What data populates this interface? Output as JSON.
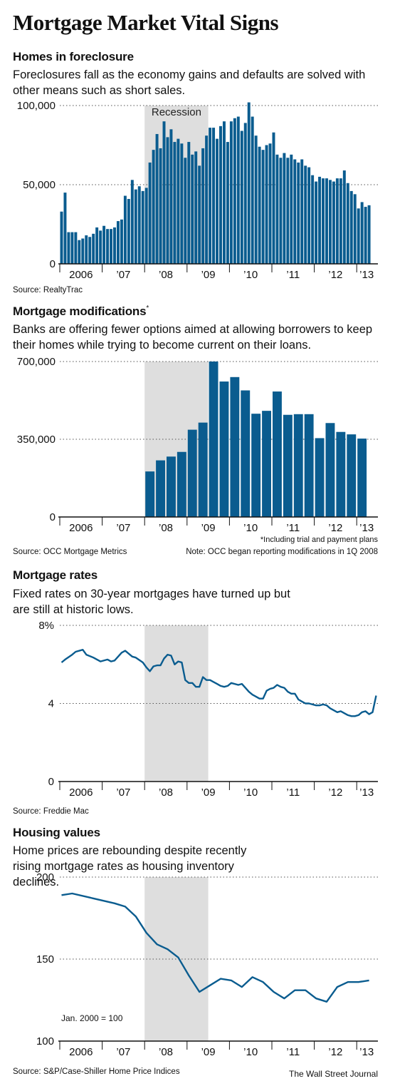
{
  "title": "Mortgage Market Vital Signs",
  "credit": "The Wall Street Journal",
  "colors": {
    "bar": "#0a5c8f",
    "line": "#0a5c8f",
    "recession": "#dedede",
    "axis": "#111111",
    "grid": "#555555"
  },
  "x_tick_labels": [
    "2006",
    "’07",
    "’08",
    "’09",
    "’10",
    "’11",
    "’12",
    "’13"
  ],
  "chart_data": [
    {
      "id": "foreclosures",
      "type": "bar",
      "title": "Homes in foreclosure",
      "subtitle": "Foreclosures fall as the economy gains and defaults are solved with other means such as short sales.",
      "source": "Source: RealtyTrac",
      "recession_label": "Recession",
      "recession": [
        "2008-01",
        "2009-06"
      ],
      "x_start": "2006-01",
      "x_end": "2013-06",
      "ylim": [
        0,
        100000
      ],
      "yticks": [
        0,
        50000,
        100000
      ],
      "ytick_labels": [
        "0",
        "50,000",
        "100,000"
      ],
      "values": [
        33000,
        45000,
        20000,
        20000,
        20000,
        15000,
        16000,
        18000,
        17000,
        19000,
        23000,
        21000,
        24000,
        22000,
        22000,
        23000,
        27000,
        28000,
        43000,
        41000,
        53000,
        47000,
        49000,
        46000,
        48000,
        64000,
        72000,
        82000,
        73000,
        90000,
        80000,
        85000,
        77000,
        79000,
        76000,
        67000,
        77000,
        69000,
        71000,
        62000,
        73000,
        81000,
        86000,
        86000,
        79000,
        87000,
        90000,
        77000,
        90000,
        92000,
        93000,
        84000,
        89000,
        102000,
        93000,
        81000,
        74000,
        72000,
        75000,
        76000,
        83000,
        69000,
        67000,
        70000,
        67000,
        69000,
        66000,
        64000,
        66000,
        62000,
        61000,
        56000,
        52000,
        55000,
        54000,
        54000,
        53000,
        52000,
        54000,
        54000,
        59000,
        51000,
        46000,
        44000,
        35000,
        39000,
        36000,
        37000
      ]
    },
    {
      "id": "modifications",
      "type": "bar",
      "title": "Mortgage modifications",
      "title_mark": "*",
      "subtitle": "Banks are offering fewer options aimed at allowing borrowers to keep their homes while trying to become current on their loans.",
      "source": "Source: OCC Mortgage Metrics",
      "footnote": "*Including trial and payment plans",
      "note": "Note: OCC began reporting modifications in 1Q 2008",
      "recession": [
        "2008-01",
        "2009-06"
      ],
      "x_start": "2006-01",
      "x_end": "2013-06",
      "ylim": [
        0,
        700000
      ],
      "yticks": [
        0,
        350000,
        700000
      ],
      "ytick_labels": [
        "0",
        "350,000",
        "700,000"
      ],
      "categories": [
        "1Q 2008",
        "2Q 2008",
        "3Q 2008",
        "4Q 2008",
        "1Q 2009",
        "2Q 2009",
        "3Q 2009",
        "4Q 2009",
        "1Q 2010",
        "2Q 2010",
        "3Q 2010",
        "4Q 2010",
        "1Q 2011",
        "2Q 2011",
        "3Q 2011",
        "4Q 2011",
        "1Q 2012",
        "2Q 2012",
        "3Q 2012",
        "4Q 2012",
        "1Q 2013"
      ],
      "values": [
        205000,
        255000,
        272000,
        293000,
        393000,
        425000,
        700000,
        610000,
        630000,
        570000,
        465000,
        478000,
        565000,
        460000,
        463000,
        463000,
        355000,
        423000,
        383000,
        372000,
        353000
      ]
    },
    {
      "id": "rates",
      "type": "line",
      "title": "Mortgage rates",
      "subtitle": "Fixed rates on 30-year mortgages have turned up but are still at historic lows.",
      "source": "Source: Freddie Mac",
      "recession": [
        "2008-01",
        "2009-06"
      ],
      "x_start": "2006-01",
      "x_end": "2013-06",
      "ylim": [
        0,
        8
      ],
      "yticks": [
        0,
        4,
        8
      ],
      "ytick_labels": [
        "0",
        "4",
        "8%"
      ],
      "x": [
        "2006-01",
        "2006-02",
        "2006-04",
        "2006-05",
        "2006-07",
        "2006-08",
        "2006-10",
        "2006-12",
        "2007-02",
        "2007-03",
        "2007-04",
        "2007-06",
        "2007-07",
        "2007-09",
        "2007-10",
        "2007-12",
        "2008-01",
        "2008-02",
        "2008-03",
        "2008-04",
        "2008-05",
        "2008-06",
        "2008-07",
        "2008-08",
        "2008-09",
        "2008-10",
        "2008-11",
        "2008-12",
        "2009-01",
        "2009-02",
        "2009-03",
        "2009-04",
        "2009-05",
        "2009-06",
        "2009-07",
        "2009-08",
        "2009-09",
        "2009-10",
        "2009-11",
        "2009-12",
        "2010-01",
        "2010-03",
        "2010-04",
        "2010-05",
        "2010-06",
        "2010-07",
        "2010-08",
        "2010-09",
        "2010-10",
        "2010-11",
        "2010-12",
        "2011-01",
        "2011-02",
        "2011-03",
        "2011-04",
        "2011-05",
        "2011-06",
        "2011-07",
        "2011-08",
        "2011-09",
        "2011-10",
        "2011-11",
        "2011-12",
        "2012-01",
        "2012-02",
        "2012-03",
        "2012-04",
        "2012-05",
        "2012-06",
        "2012-07",
        "2012-08",
        "2012-09",
        "2012-10",
        "2012-11",
        "2012-12",
        "2013-01",
        "2013-02",
        "2013-03",
        "2013-04",
        "2013-05",
        "2013-06"
      ],
      "y": [
        6.1,
        6.25,
        6.5,
        6.65,
        6.75,
        6.5,
        6.35,
        6.15,
        6.25,
        6.15,
        6.2,
        6.6,
        6.7,
        6.4,
        6.35,
        6.1,
        5.85,
        5.65,
        5.9,
        5.95,
        5.95,
        6.3,
        6.5,
        6.45,
        6.0,
        6.15,
        6.1,
        5.2,
        5.05,
        5.05,
        4.85,
        4.85,
        5.35,
        5.2,
        5.2,
        5.1,
        5.0,
        4.9,
        4.85,
        4.9,
        5.05,
        4.95,
        5.0,
        4.8,
        4.6,
        4.45,
        4.35,
        4.25,
        4.25,
        4.65,
        4.75,
        4.8,
        4.95,
        4.85,
        4.8,
        4.6,
        4.5,
        4.5,
        4.2,
        4.1,
        4.0,
        4.0,
        3.95,
        3.9,
        3.9,
        3.95,
        3.9,
        3.75,
        3.65,
        3.55,
        3.6,
        3.5,
        3.4,
        3.35,
        3.35,
        3.4,
        3.55,
        3.6,
        3.45,
        3.55,
        4.4
      ]
    },
    {
      "id": "home-prices",
      "type": "line",
      "title": "Housing values",
      "subtitle": "Home prices are rebounding despite recently rising mortgage rates as housing inventory declines.",
      "source": "Source: S&P/Case-Shiller Home Price Indices",
      "annotation": "Jan. 2000 = 100",
      "recession": [
        "2008-01",
        "2009-06"
      ],
      "x_start": "2006-01",
      "x_end": "2013-06",
      "ylim": [
        100,
        200
      ],
      "yticks": [
        100,
        150,
        200
      ],
      "ytick_labels": [
        "100",
        "150",
        "200"
      ],
      "x": [
        "2006-01",
        "2006-04",
        "2006-10",
        "2007-04",
        "2007-07",
        "2007-10",
        "2008-01",
        "2008-04",
        "2008-07",
        "2008-10",
        "2009-01",
        "2009-04",
        "2009-07",
        "2009-10",
        "2010-01",
        "2010-04",
        "2010-07",
        "2010-10",
        "2011-01",
        "2011-04",
        "2011-07",
        "2011-10",
        "2012-01",
        "2012-04",
        "2012-07",
        "2012-10",
        "2013-01",
        "2013-04"
      ],
      "y": [
        189,
        190,
        187,
        184,
        182,
        176,
        166,
        159,
        156,
        151,
        140,
        130,
        134,
        138,
        137,
        133,
        139,
        136,
        130,
        126,
        131,
        131,
        126,
        124,
        133,
        136,
        136,
        137
      ]
    }
  ]
}
